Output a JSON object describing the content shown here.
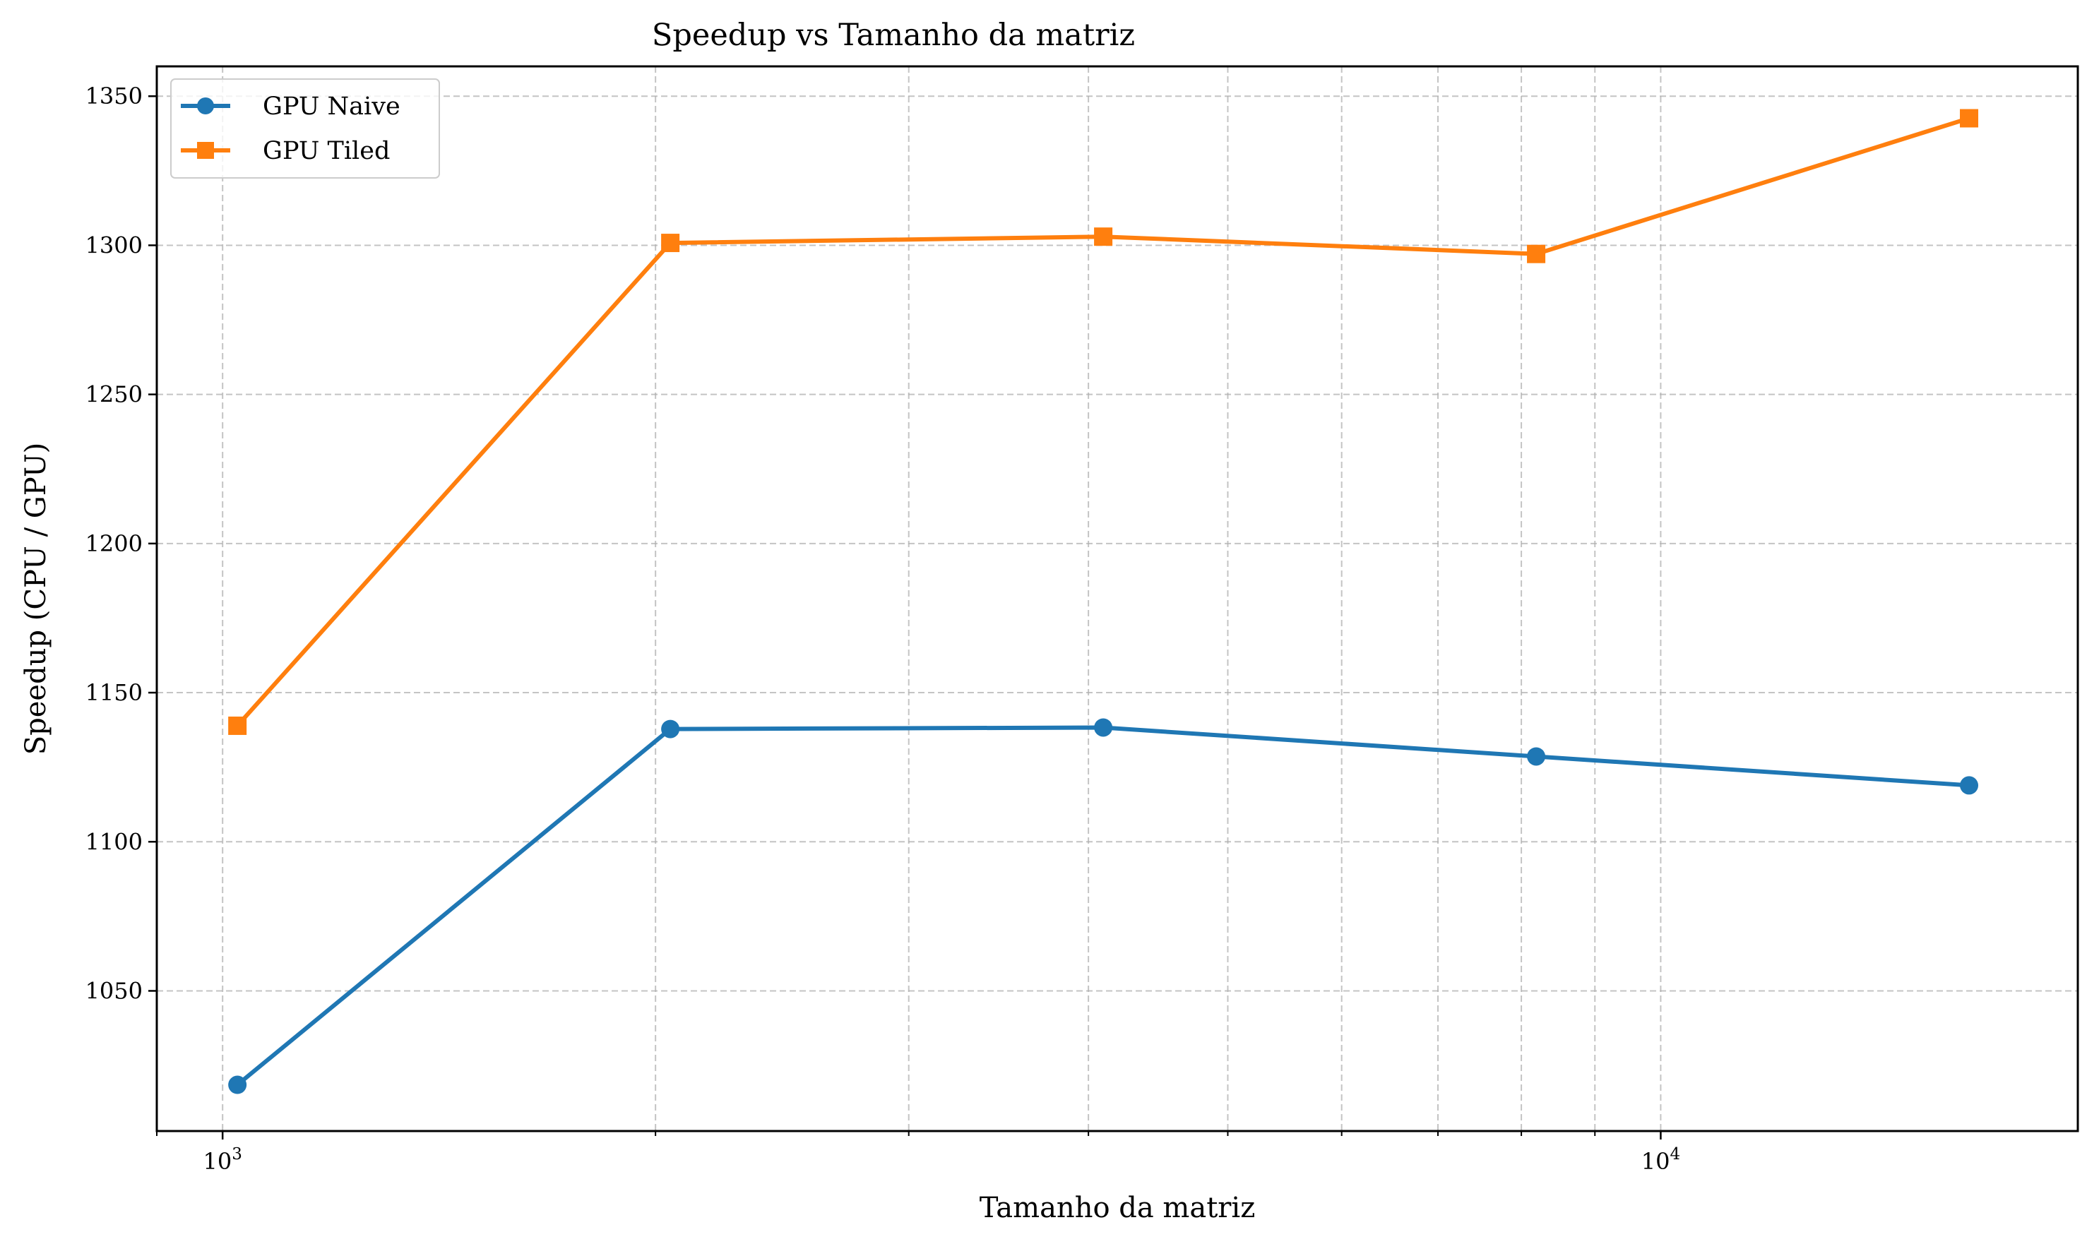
{
  "chart_data": {
    "type": "line",
    "title": "Speedup vs Tamanho da matriz",
    "xlabel": "Tamanho da matriz",
    "ylabel": "Speedup (CPU / GPU)",
    "xscale": "log",
    "xlim": [
      900,
      19500
    ],
    "ylim": [
      1003,
      1360
    ],
    "x": [
      1024,
      2048,
      4096,
      8192,
      16384
    ],
    "yticks": [
      1050,
      1100,
      1150,
      1200,
      1250,
      1300,
      1350
    ],
    "xticks": [
      {
        "value": 1000,
        "base": "10",
        "exp": "3"
      },
      {
        "value": 10000,
        "base": "10",
        "exp": "4"
      }
    ],
    "grid": true,
    "legend_position": "top-left",
    "series": [
      {
        "name": "GPU Naive",
        "color": "#1f77b4",
        "marker": "circle",
        "values": [
          1018.5,
          1137.8,
          1138.3,
          1128.6,
          1118.9
        ]
      },
      {
        "name": "GPU Tiled",
        "color": "#ff7f0e",
        "marker": "square",
        "values": [
          1138.9,
          1300.8,
          1302.9,
          1297.1,
          1342.6
        ]
      }
    ]
  }
}
